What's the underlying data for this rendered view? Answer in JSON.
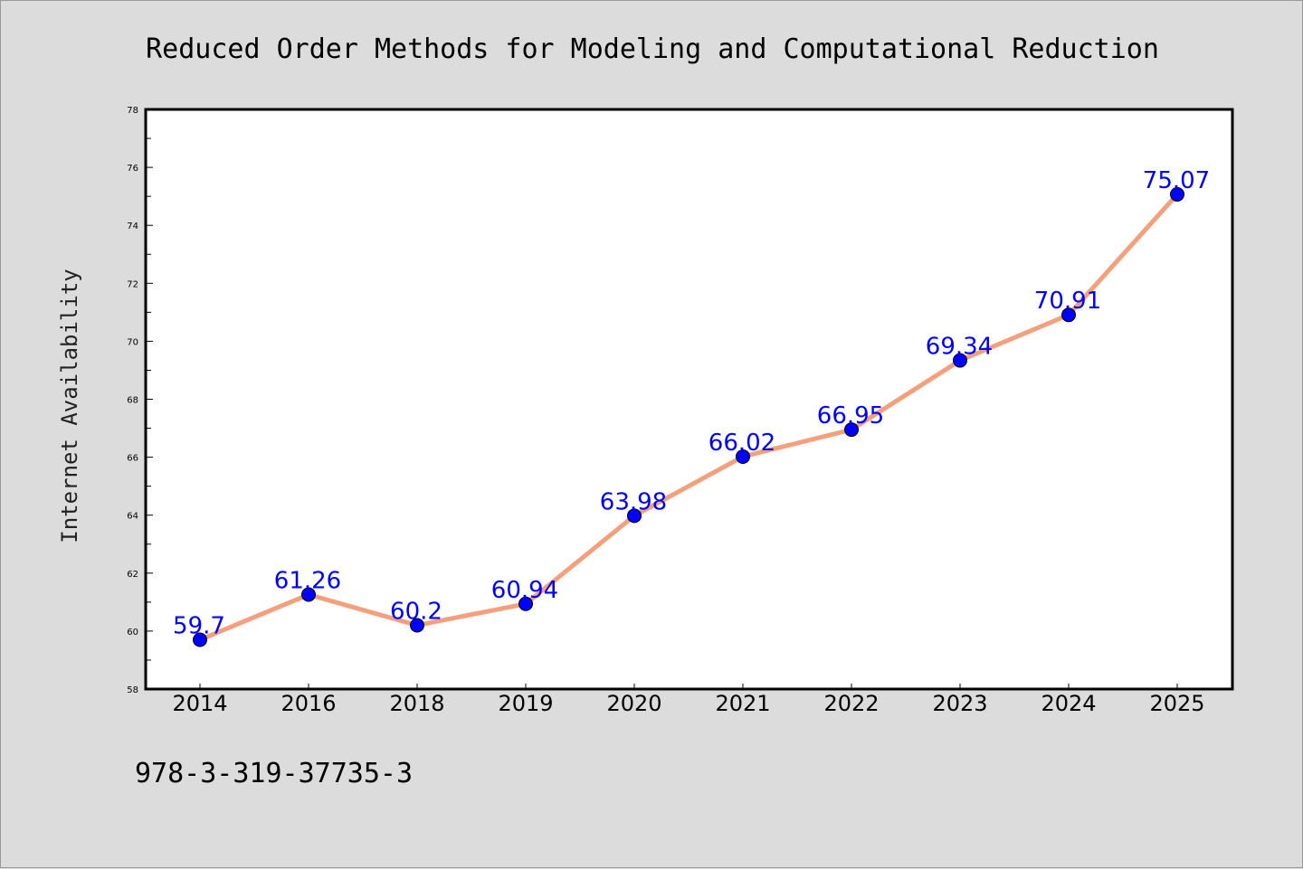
{
  "chart_data": {
    "type": "line",
    "title": "Reduced Order Methods for Modeling and Computational Reduction",
    "xlabel": "",
    "ylabel": "Internet Availability",
    "categories": [
      "2014",
      "2016",
      "2018",
      "2019",
      "2020",
      "2021",
      "2022",
      "2023",
      "2024",
      "2025"
    ],
    "series": [
      {
        "values": [
          59.7,
          61.26,
          60.2,
          60.94,
          63.98,
          66.02,
          66.95,
          69.34,
          70.91,
          75.07
        ],
        "data_labels": [
          "59.7",
          "61.26",
          "60.2",
          "60.94",
          "63.98",
          "66.02",
          "66.95",
          "69.34",
          "70.91",
          "75.07"
        ],
        "line_color": "#f4a07c",
        "marker_color": "#0000ff"
      }
    ],
    "ylim": [
      58,
      78
    ],
    "yticks": [
      "58",
      "60",
      "62",
      "64",
      "66",
      "68",
      "70",
      "72",
      "74",
      "76",
      "78"
    ],
    "grid": false,
    "legend": "none"
  },
  "annotation": "978-3-319-37735-3",
  "colors": {
    "background": "#dcdcdc",
    "plot_background": "#ffffff",
    "line": "#f4a07c",
    "marker": "#0000ff",
    "data_label": "#0000ff"
  }
}
